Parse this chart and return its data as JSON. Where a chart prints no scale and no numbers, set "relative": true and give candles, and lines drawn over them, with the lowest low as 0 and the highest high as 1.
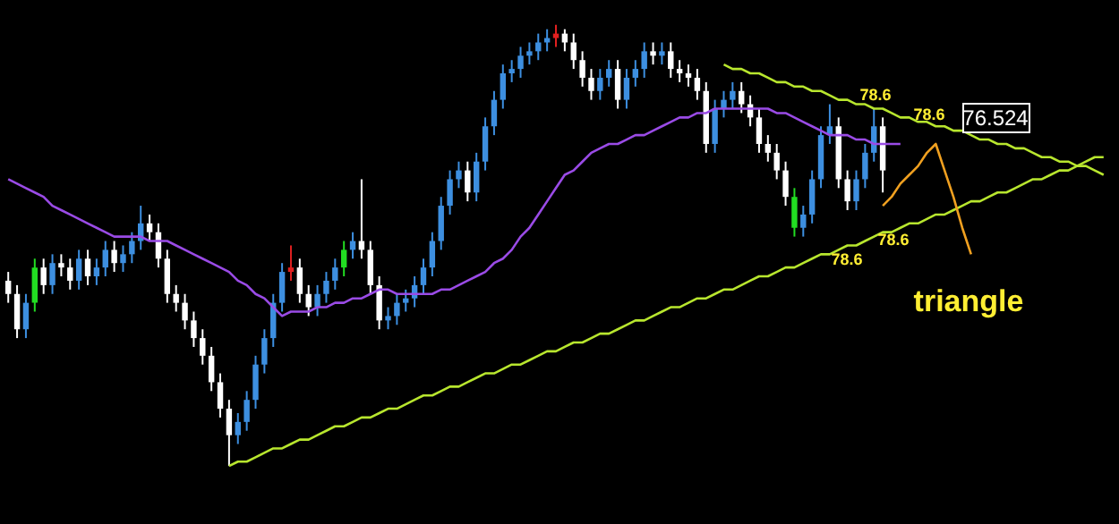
{
  "chart_data": {
    "type": "candlestick",
    "relative": true,
    "categories": [
      null,
      null,
      null,
      null,
      null,
      null,
      null,
      null,
      null,
      null,
      null,
      null,
      null,
      null,
      null,
      null,
      null,
      null,
      null,
      null,
      null,
      null,
      null,
      null,
      null,
      null,
      null,
      null,
      null,
      null,
      null,
      null,
      null,
      null,
      null,
      null,
      null,
      null,
      null,
      null,
      null,
      null,
      null,
      null,
      null,
      null,
      null,
      null,
      null,
      null,
      null,
      null,
      null,
      null,
      null,
      null,
      null,
      null,
      null,
      null,
      null,
      null,
      null,
      null,
      null,
      null,
      null,
      null,
      null,
      null,
      null,
      null,
      null,
      null,
      null,
      null,
      null,
      null,
      null,
      null,
      null,
      null,
      null,
      null,
      null,
      null,
      null,
      null,
      null,
      null,
      null,
      null,
      null,
      null,
      null,
      null,
      null,
      null,
      null,
      null,
      null,
      null,
      null,
      null,
      null,
      null,
      null,
      null,
      null,
      null,
      null,
      null,
      null,
      null,
      null,
      null,
      null,
      null,
      null,
      null,
      null,
      null,
      null,
      null,
      null
    ],
    "ohlc": [
      [
        0.42,
        0.44,
        0.37,
        0.39
      ],
      [
        0.39,
        0.41,
        0.29,
        0.31
      ],
      [
        0.31,
        0.39,
        0.29,
        0.37
      ],
      [
        0.37,
        0.47,
        0.35,
        0.45
      ],
      [
        0.45,
        0.47,
        0.39,
        0.41
      ],
      [
        0.41,
        0.48,
        0.39,
        0.46
      ],
      [
        0.46,
        0.48,
        0.43,
        0.45
      ],
      [
        0.45,
        0.47,
        0.4,
        0.42
      ],
      [
        0.42,
        0.49,
        0.4,
        0.47
      ],
      [
        0.47,
        0.49,
        0.41,
        0.43
      ],
      [
        0.43,
        0.47,
        0.41,
        0.45
      ],
      [
        0.45,
        0.51,
        0.43,
        0.49
      ],
      [
        0.49,
        0.51,
        0.44,
        0.46
      ],
      [
        0.46,
        0.5,
        0.44,
        0.48
      ],
      [
        0.48,
        0.53,
        0.46,
        0.51
      ],
      [
        0.51,
        0.59,
        0.49,
        0.55
      ],
      [
        0.55,
        0.57,
        0.51,
        0.53
      ],
      [
        0.53,
        0.55,
        0.45,
        0.47
      ],
      [
        0.47,
        0.49,
        0.37,
        0.39
      ],
      [
        0.39,
        0.41,
        0.35,
        0.37
      ],
      [
        0.37,
        0.39,
        0.31,
        0.33
      ],
      [
        0.33,
        0.35,
        0.27,
        0.29
      ],
      [
        0.29,
        0.31,
        0.23,
        0.25
      ],
      [
        0.25,
        0.27,
        0.17,
        0.19
      ],
      [
        0.19,
        0.21,
        0.11,
        0.13
      ],
      [
        0.13,
        0.15,
        0.0,
        0.07
      ],
      [
        0.07,
        0.12,
        0.05,
        0.1
      ],
      [
        0.1,
        0.17,
        0.08,
        0.15
      ],
      [
        0.15,
        0.25,
        0.13,
        0.23
      ],
      [
        0.23,
        0.31,
        0.21,
        0.29
      ],
      [
        0.29,
        0.39,
        0.27,
        0.37
      ],
      [
        0.37,
        0.46,
        0.35,
        0.44
      ],
      [
        0.44,
        0.5,
        0.42,
        0.45
      ],
      [
        0.45,
        0.47,
        0.37,
        0.39
      ],
      [
        0.39,
        0.41,
        0.34,
        0.36
      ],
      [
        0.36,
        0.41,
        0.34,
        0.39
      ],
      [
        0.39,
        0.44,
        0.37,
        0.42
      ],
      [
        0.42,
        0.47,
        0.4,
        0.45
      ],
      [
        0.45,
        0.51,
        0.43,
        0.49
      ],
      [
        0.49,
        0.53,
        0.47,
        0.51
      ],
      [
        0.51,
        0.65,
        0.47,
        0.49
      ],
      [
        0.49,
        0.51,
        0.39,
        0.41
      ],
      [
        0.41,
        0.43,
        0.31,
        0.33
      ],
      [
        0.33,
        0.36,
        0.31,
        0.34
      ],
      [
        0.34,
        0.39,
        0.32,
        0.37
      ],
      [
        0.37,
        0.4,
        0.35,
        0.38
      ],
      [
        0.38,
        0.43,
        0.36,
        0.41
      ],
      [
        0.41,
        0.47,
        0.39,
        0.45
      ],
      [
        0.45,
        0.53,
        0.43,
        0.51
      ],
      [
        0.51,
        0.61,
        0.49,
        0.59
      ],
      [
        0.59,
        0.67,
        0.57,
        0.65
      ],
      [
        0.65,
        0.69,
        0.63,
        0.67
      ],
      [
        0.67,
        0.69,
        0.6,
        0.62
      ],
      [
        0.62,
        0.71,
        0.6,
        0.69
      ],
      [
        0.69,
        0.79,
        0.67,
        0.77
      ],
      [
        0.77,
        0.85,
        0.75,
        0.83
      ],
      [
        0.83,
        0.91,
        0.81,
        0.89
      ],
      [
        0.89,
        0.92,
        0.87,
        0.9
      ],
      [
        0.9,
        0.95,
        0.88,
        0.93
      ],
      [
        0.93,
        0.96,
        0.91,
        0.94
      ],
      [
        0.94,
        0.98,
        0.92,
        0.96
      ],
      [
        0.96,
        0.99,
        0.94,
        0.97
      ],
      [
        0.97,
        1.0,
        0.95,
        0.98
      ],
      [
        0.98,
        0.99,
        0.94,
        0.96
      ],
      [
        0.96,
        0.98,
        0.9,
        0.92
      ],
      [
        0.92,
        0.94,
        0.86,
        0.88
      ],
      [
        0.88,
        0.9,
        0.83,
        0.85
      ],
      [
        0.85,
        0.9,
        0.83,
        0.88
      ],
      [
        0.88,
        0.92,
        0.86,
        0.9
      ],
      [
        0.9,
        0.92,
        0.81,
        0.83
      ],
      [
        0.83,
        0.9,
        0.81,
        0.88
      ],
      [
        0.88,
        0.92,
        0.86,
        0.9
      ],
      [
        0.9,
        0.96,
        0.88,
        0.94
      ],
      [
        0.94,
        0.96,
        0.91,
        0.93
      ],
      [
        0.93,
        0.96,
        0.91,
        0.94
      ],
      [
        0.94,
        0.96,
        0.88,
        0.9
      ],
      [
        0.9,
        0.92,
        0.87,
        0.89
      ],
      [
        0.89,
        0.91,
        0.86,
        0.88
      ],
      [
        0.88,
        0.9,
        0.83,
        0.85
      ],
      [
        0.85,
        0.87,
        0.71,
        0.73
      ],
      [
        0.73,
        0.83,
        0.71,
        0.81
      ],
      [
        0.81,
        0.85,
        0.79,
        0.83
      ],
      [
        0.83,
        0.87,
        0.81,
        0.85
      ],
      [
        0.85,
        0.87,
        0.8,
        0.82
      ],
      [
        0.82,
        0.84,
        0.77,
        0.79
      ],
      [
        0.79,
        0.81,
        0.71,
        0.73
      ],
      [
        0.73,
        0.75,
        0.69,
        0.71
      ],
      [
        0.71,
        0.73,
        0.65,
        0.67
      ],
      [
        0.67,
        0.69,
        0.59,
        0.61
      ],
      [
        0.61,
        0.63,
        0.52,
        0.54
      ],
      [
        0.54,
        0.59,
        0.52,
        0.57
      ],
      [
        0.57,
        0.67,
        0.55,
        0.65
      ],
      [
        0.65,
        0.77,
        0.63,
        0.75
      ],
      [
        0.75,
        0.82,
        0.73,
        0.77
      ],
      [
        0.77,
        0.79,
        0.63,
        0.65
      ],
      [
        0.65,
        0.67,
        0.58,
        0.6
      ],
      [
        0.6,
        0.67,
        0.58,
        0.65
      ],
      [
        0.65,
        0.73,
        0.63,
        0.71
      ],
      [
        0.71,
        0.81,
        0.69,
        0.77
      ],
      [
        0.77,
        0.79,
        0.62,
        0.67
      ],
      null,
      null,
      null,
      null,
      null,
      null,
      null,
      null,
      null,
      null,
      null,
      null,
      null,
      null,
      null,
      null,
      null,
      null,
      null,
      null,
      null,
      null,
      null,
      null,
      null
    ],
    "colors": [
      "#ffffff",
      "#ffffff",
      "#3d8fe0",
      "#22dd22",
      "#ffffff",
      "#3d8fe0",
      "#ffffff",
      "#ffffff",
      "#3d8fe0",
      "#ffffff",
      "#3d8fe0",
      "#3d8fe0",
      "#ffffff",
      "#3d8fe0",
      "#3d8fe0",
      "#3d8fe0",
      "#ffffff",
      "#ffffff",
      "#ffffff",
      "#ffffff",
      "#ffffff",
      "#ffffff",
      "#ffffff",
      "#ffffff",
      "#ffffff",
      "#ffffff",
      "#3d8fe0",
      "#3d8fe0",
      "#3d8fe0",
      "#3d8fe0",
      "#3d8fe0",
      "#3d8fe0",
      "#e02020",
      "#ffffff",
      "#ffffff",
      "#3d8fe0",
      "#3d8fe0",
      "#3d8fe0",
      "#22dd22",
      "#3d8fe0",
      "#ffffff",
      "#ffffff",
      "#ffffff",
      "#3d8fe0",
      "#3d8fe0",
      "#3d8fe0",
      "#3d8fe0",
      "#3d8fe0",
      "#3d8fe0",
      "#3d8fe0",
      "#3d8fe0",
      "#3d8fe0",
      "#ffffff",
      "#3d8fe0",
      "#3d8fe0",
      "#3d8fe0",
      "#3d8fe0",
      "#3d8fe0",
      "#3d8fe0",
      "#3d8fe0",
      "#3d8fe0",
      "#3d8fe0",
      "#e02020",
      "#ffffff",
      "#ffffff",
      "#ffffff",
      "#ffffff",
      "#3d8fe0",
      "#3d8fe0",
      "#ffffff",
      "#3d8fe0",
      "#3d8fe0",
      "#3d8fe0",
      "#ffffff",
      "#3d8fe0",
      "#ffffff",
      "#ffffff",
      "#ffffff",
      "#ffffff",
      "#ffffff",
      "#3d8fe0",
      "#3d8fe0",
      "#3d8fe0",
      "#ffffff",
      "#ffffff",
      "#ffffff",
      "#ffffff",
      "#ffffff",
      "#ffffff",
      "#22dd22",
      "#3d8fe0",
      "#3d8fe0",
      "#3d8fe0",
      "#3d8fe0",
      "#ffffff",
      "#ffffff",
      "#3d8fe0",
      "#3d8fe0",
      "#3d8fe0",
      "#ffffff",
      null,
      null,
      null,
      null,
      null,
      null,
      null,
      null,
      null,
      null,
      null,
      null,
      null,
      null,
      null,
      null,
      null,
      null,
      null,
      null,
      null,
      null,
      null,
      null,
      null
    ],
    "series": [
      {
        "type": "line",
        "color": "#9a4be6",
        "values": [
          0.65,
          0.64,
          0.63,
          0.62,
          0.61,
          0.59,
          0.58,
          0.57,
          0.56,
          0.55,
          0.54,
          0.53,
          0.52,
          0.52,
          0.52,
          0.52,
          0.51,
          0.51,
          0.51,
          0.5,
          0.49,
          0.48,
          0.47,
          0.46,
          0.45,
          0.44,
          0.42,
          0.41,
          0.39,
          0.38,
          0.36,
          0.34,
          0.35,
          0.35,
          0.35,
          0.36,
          0.36,
          0.37,
          0.37,
          0.38,
          0.38,
          0.39,
          0.4,
          0.4,
          0.39,
          0.39,
          0.39,
          0.39,
          0.39,
          0.4,
          0.4,
          0.41,
          0.42,
          0.43,
          0.44,
          0.46,
          0.47,
          0.49,
          0.52,
          0.54,
          0.57,
          0.6,
          0.63,
          0.66,
          0.67,
          0.69,
          0.71,
          0.72,
          0.73,
          0.73,
          0.74,
          0.75,
          0.75,
          0.76,
          0.77,
          0.78,
          0.79,
          0.79,
          0.8,
          0.8,
          0.81,
          0.81,
          0.81,
          0.81,
          0.81,
          0.81,
          0.81,
          0.8,
          0.8,
          0.79,
          0.78,
          0.77,
          0.76,
          0.75,
          0.75,
          0.75,
          0.74,
          0.74,
          0.73,
          0.73,
          0.73,
          0.73,
          null,
          null,
          null,
          null,
          null,
          null,
          null,
          null,
          null,
          null,
          null,
          null,
          null,
          null,
          null,
          null,
          null,
          null,
          null,
          null,
          null,
          null,
          null
        ]
      },
      {
        "type": "line",
        "color": "#b8e62e",
        "values": [
          null,
          null,
          null,
          null,
          null,
          null,
          null,
          null,
          null,
          null,
          null,
          null,
          null,
          null,
          null,
          null,
          null,
          null,
          null,
          null,
          null,
          null,
          null,
          null,
          null,
          0.0,
          0.01,
          0.01,
          0.02,
          0.03,
          0.04,
          0.04,
          0.05,
          0.06,
          0.06,
          0.07,
          0.08,
          0.09,
          0.09,
          0.1,
          0.11,
          0.11,
          0.12,
          0.13,
          0.13,
          0.14,
          0.15,
          0.16,
          0.16,
          0.17,
          0.18,
          0.18,
          0.19,
          0.2,
          0.21,
          0.21,
          0.22,
          0.23,
          0.23,
          0.24,
          0.25,
          0.26,
          0.26,
          0.27,
          0.28,
          0.28,
          0.29,
          0.3,
          0.3,
          0.31,
          0.32,
          0.33,
          0.33,
          0.34,
          0.35,
          0.36,
          0.36,
          0.37,
          0.38,
          0.38,
          0.39,
          0.4,
          0.4,
          0.41,
          0.42,
          0.43,
          0.43,
          0.44,
          0.45,
          0.45,
          0.46,
          0.47,
          0.48,
          0.48,
          0.49,
          0.5,
          0.5,
          0.51,
          0.52,
          0.53,
          0.53,
          0.54,
          0.55,
          0.55,
          0.56,
          0.57,
          0.57,
          0.58,
          0.59,
          0.6,
          0.6,
          0.61,
          0.62,
          0.62,
          0.63,
          0.64,
          0.65,
          0.65,
          0.66,
          0.67,
          0.67,
          0.68,
          0.69,
          0.7,
          0.7
        ]
      },
      {
        "type": "line",
        "color": "#b8e62e",
        "values": [
          null,
          null,
          null,
          null,
          null,
          null,
          null,
          null,
          null,
          null,
          null,
          null,
          null,
          null,
          null,
          null,
          null,
          null,
          null,
          null,
          null,
          null,
          null,
          null,
          null,
          null,
          null,
          null,
          null,
          null,
          null,
          null,
          null,
          null,
          null,
          null,
          null,
          null,
          null,
          null,
          null,
          null,
          null,
          null,
          null,
          null,
          null,
          null,
          null,
          null,
          null,
          null,
          null,
          null,
          null,
          null,
          null,
          null,
          null,
          null,
          null,
          null,
          null,
          null,
          null,
          null,
          null,
          null,
          null,
          null,
          null,
          null,
          null,
          null,
          null,
          null,
          null,
          null,
          null,
          null,
          null,
          0.91,
          0.9,
          0.9,
          0.89,
          0.89,
          0.88,
          0.87,
          0.87,
          0.86,
          0.86,
          0.85,
          0.85,
          0.84,
          0.83,
          0.83,
          0.82,
          0.82,
          0.81,
          0.81,
          0.8,
          0.79,
          0.79,
          0.78,
          0.78,
          0.77,
          0.77,
          0.76,
          0.76,
          0.75,
          0.74,
          0.74,
          0.73,
          0.73,
          0.72,
          0.72,
          0.71,
          0.7,
          0.7,
          0.69,
          0.69,
          0.68,
          0.68,
          0.67,
          0.66
        ]
      },
      {
        "type": "line",
        "color": "#f0a020",
        "values": [
          null,
          null,
          null,
          null,
          null,
          null,
          null,
          null,
          null,
          null,
          null,
          null,
          null,
          null,
          null,
          null,
          null,
          null,
          null,
          null,
          null,
          null,
          null,
          null,
          null,
          null,
          null,
          null,
          null,
          null,
          null,
          null,
          null,
          null,
          null,
          null,
          null,
          null,
          null,
          null,
          null,
          null,
          null,
          null,
          null,
          null,
          null,
          null,
          null,
          null,
          null,
          null,
          null,
          null,
          null,
          null,
          null,
          null,
          null,
          null,
          null,
          null,
          null,
          null,
          null,
          null,
          null,
          null,
          null,
          null,
          null,
          null,
          null,
          null,
          null,
          null,
          null,
          null,
          null,
          null,
          null,
          null,
          null,
          null,
          null,
          null,
          null,
          null,
          null,
          null,
          null,
          null,
          null,
          null,
          null,
          null,
          null,
          null,
          null,
          0.59,
          0.61,
          0.64,
          0.66,
          0.68,
          0.71,
          0.73,
          0.67,
          0.61,
          0.54,
          0.48,
          null,
          null,
          null,
          null,
          null,
          null,
          null,
          null,
          null,
          null,
          null,
          null,
          null,
          null,
          null
        ]
      }
    ],
    "annotations": [
      "78.6",
      "78.6",
      "78.6",
      "78.6",
      "76.524",
      "triangle"
    ]
  }
}
